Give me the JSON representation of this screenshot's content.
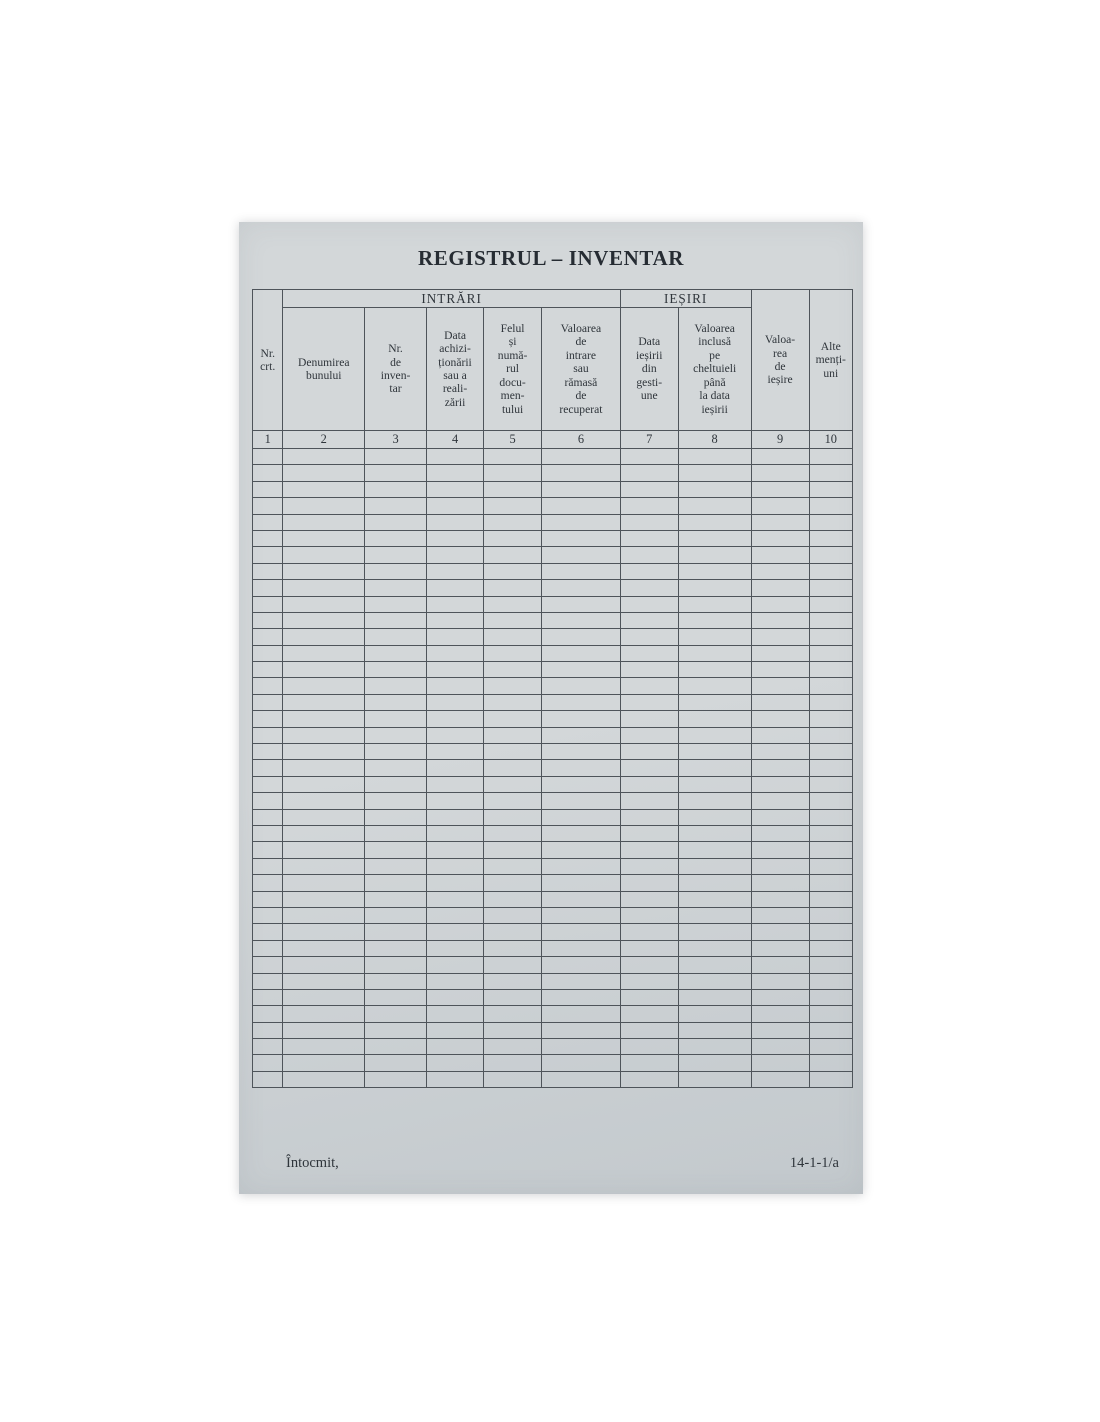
{
  "colors": {
    "background": "#ffffff",
    "paper": "#d3d7d9",
    "paper_edge": "#c3c9cd",
    "ink": "#2f353b",
    "line": "#4e545a"
  },
  "page": {
    "title": "REGISTRUL – INVENTAR",
    "footer_left": "Întocmit,",
    "form_code": "14-1-1/a"
  },
  "table": {
    "groups": {
      "intrari": "INTRĂRI",
      "iesiri": "IEȘIRI"
    },
    "columns": [
      {
        "label": "Nr.\ncrt.",
        "number": "1"
      },
      {
        "label": "Denumirea\nbunului",
        "number": "2"
      },
      {
        "label": "Nr.\nde\ninven-\ntar",
        "number": "3"
      },
      {
        "label": "Data\nachizi-\nționării\nsau a\nreali-\nzării",
        "number": "4"
      },
      {
        "label": "Felul\nși\nnumă-\nrul\ndocu-\nmen-\ntului",
        "number": "5"
      },
      {
        "label": "Valoarea\nde\nintrare\nsau\nrămasă\nde\nrecuperat",
        "number": "6"
      },
      {
        "label": "Data\nieșirii\ndin\ngesti-\nune",
        "number": "7"
      },
      {
        "label": "Valoarea\ninclusă\npe\ncheltuieli\npână\nla data\nieșirii",
        "number": "8"
      },
      {
        "label": "Valoa-\nrea\nde\nieșire",
        "number": "9"
      },
      {
        "label": "Alte\nmenți-\nuni",
        "number": "10"
      }
    ],
    "body_row_count": 39
  }
}
